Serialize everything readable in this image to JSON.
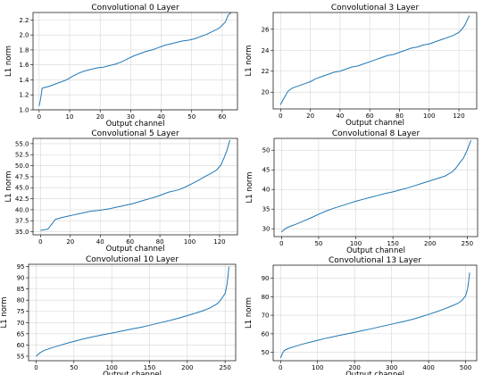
{
  "chart_data": [
    {
      "type": "line",
      "title": "Convolutional 0 Layer",
      "xlabel": "Output channel",
      "ylabel": "L1 norm",
      "xlim": [
        -2,
        65
      ],
      "ylim": [
        1.0,
        2.3
      ],
      "xticks": [
        0,
        10,
        20,
        30,
        40,
        50,
        60
      ],
      "yticks": [
        1.0,
        1.2,
        1.4,
        1.6,
        1.8,
        2.0,
        2.2
      ],
      "ytick_labels": [
        "1.0",
        "1.2",
        "1.4",
        "1.6",
        "1.8",
        "2.0",
        "2.2"
      ],
      "grid": true,
      "series": [
        {
          "x": [
            0,
            0.5,
            1,
            3,
            5,
            7,
            9,
            11,
            13,
            15,
            17,
            19,
            21,
            23,
            25,
            27,
            29,
            31,
            33,
            35,
            37,
            39,
            41,
            43,
            45,
            47,
            49,
            51,
            53,
            55,
            57,
            59,
            60,
            61,
            62,
            63
          ],
          "values": [
            1.05,
            1.15,
            1.29,
            1.31,
            1.34,
            1.37,
            1.4,
            1.45,
            1.49,
            1.52,
            1.54,
            1.56,
            1.57,
            1.59,
            1.61,
            1.64,
            1.68,
            1.72,
            1.75,
            1.78,
            1.8,
            1.83,
            1.86,
            1.88,
            1.9,
            1.92,
            1.93,
            1.95,
            1.98,
            2.01,
            2.05,
            2.09,
            2.13,
            2.17,
            2.27,
            2.3
          ]
        }
      ]
    },
    {
      "type": "line",
      "title": "Convolutional 3 Layer",
      "xlabel": "Output channel",
      "ylabel": "L1 norm",
      "xlim": [
        -5,
        132
      ],
      "ylim": [
        18.4,
        27.6
      ],
      "xticks": [
        0,
        20,
        40,
        60,
        80,
        100,
        120
      ],
      "yticks": [
        20,
        22,
        24,
        26
      ],
      "ytick_labels": [
        "20",
        "22",
        "24",
        "26"
      ],
      "grid": true,
      "series": [
        {
          "x": [
            0,
            1,
            3,
            5,
            8,
            12,
            16,
            20,
            24,
            28,
            32,
            36,
            40,
            44,
            48,
            52,
            56,
            60,
            64,
            68,
            72,
            76,
            80,
            84,
            88,
            92,
            96,
            100,
            104,
            108,
            112,
            116,
            120,
            122,
            124,
            126,
            127
          ],
          "values": [
            18.8,
            19.1,
            19.6,
            20.1,
            20.4,
            20.6,
            20.8,
            21.0,
            21.3,
            21.5,
            21.7,
            21.9,
            22.0,
            22.2,
            22.4,
            22.5,
            22.7,
            22.9,
            23.1,
            23.3,
            23.5,
            23.6,
            23.8,
            24.0,
            24.2,
            24.3,
            24.5,
            24.6,
            24.8,
            25.0,
            25.2,
            25.4,
            25.7,
            26.0,
            26.4,
            27.0,
            27.3
          ]
        }
      ]
    },
    {
      "type": "line",
      "title": "Convolutional 5 Layer",
      "xlabel": "Output channel",
      "ylabel": "L1 norm",
      "xlim": [
        -5,
        132
      ],
      "ylim": [
        34.3,
        56.2
      ],
      "xticks": [
        0,
        20,
        40,
        60,
        80,
        100,
        120
      ],
      "yticks": [
        35.0,
        37.5,
        40.0,
        42.5,
        45.0,
        47.5,
        50.0,
        52.5,
        55.0
      ],
      "ytick_labels": [
        "35.0",
        "37.5",
        "40.0",
        "42.5",
        "45.0",
        "47.5",
        "50.0",
        "52.5",
        "55.0"
      ],
      "grid": true,
      "series": [
        {
          "x": [
            0,
            3,
            5,
            7,
            10,
            14,
            18,
            22,
            26,
            30,
            34,
            38,
            42,
            46,
            50,
            54,
            58,
            62,
            66,
            70,
            74,
            78,
            82,
            86,
            90,
            94,
            98,
            102,
            106,
            110,
            114,
            118,
            121,
            123,
            125,
            126,
            127
          ],
          "values": [
            35.3,
            35.5,
            35.6,
            36.5,
            37.8,
            38.2,
            38.5,
            38.8,
            39.1,
            39.4,
            39.7,
            39.8,
            40.0,
            40.2,
            40.5,
            40.8,
            41.1,
            41.4,
            41.8,
            42.2,
            42.6,
            43.0,
            43.5,
            44.0,
            44.3,
            44.7,
            45.3,
            46.0,
            46.7,
            47.5,
            48.2,
            49.0,
            50.2,
            51.8,
            53.5,
            54.8,
            55.8
          ]
        }
      ]
    },
    {
      "type": "line",
      "title": "Convolutional 8 Layer",
      "xlabel": "Output channel",
      "ylabel": "L1 norm",
      "xlim": [
        -10,
        264
      ],
      "ylim": [
        28.0,
        53.0
      ],
      "xticks": [
        0,
        50,
        100,
        150,
        200,
        250
      ],
      "yticks": [
        30,
        35,
        40,
        45,
        50
      ],
      "ytick_labels": [
        "30",
        "35",
        "40",
        "45",
        "50"
      ],
      "grid": true,
      "series": [
        {
          "x": [
            0,
            5,
            10,
            20,
            30,
            40,
            50,
            60,
            70,
            80,
            90,
            100,
            110,
            120,
            130,
            140,
            150,
            160,
            170,
            180,
            190,
            200,
            210,
            220,
            230,
            235,
            240,
            245,
            250,
            253,
            255
          ],
          "values": [
            29.2,
            30.0,
            30.5,
            31.2,
            32.0,
            32.8,
            33.7,
            34.5,
            35.2,
            35.8,
            36.4,
            37.0,
            37.5,
            38.0,
            38.5,
            39.0,
            39.4,
            39.9,
            40.4,
            41.0,
            41.6,
            42.2,
            42.8,
            43.4,
            44.5,
            45.5,
            46.8,
            48.0,
            50.0,
            51.5,
            52.5
          ]
        }
      ]
    },
    {
      "type": "line",
      "title": "Convolutional 10 Layer",
      "xlabel": "Output channel",
      "ylabel": "L1 norm",
      "xlim": [
        -10,
        264
      ],
      "ylim": [
        53.0,
        96.0
      ],
      "xticks": [
        0,
        50,
        100,
        150,
        200,
        250
      ],
      "yticks": [
        55,
        60,
        65,
        70,
        75,
        80,
        85,
        90,
        95
      ],
      "ytick_labels": [
        "55",
        "60",
        "65",
        "70",
        "75",
        "80",
        "85",
        "90",
        "95"
      ],
      "grid": true,
      "series": [
        {
          "x": [
            0,
            5,
            10,
            20,
            30,
            40,
            50,
            60,
            70,
            80,
            90,
            100,
            110,
            120,
            130,
            140,
            150,
            160,
            170,
            180,
            190,
            200,
            210,
            220,
            230,
            240,
            245,
            250,
            252,
            254,
            255
          ],
          "values": [
            55.0,
            56.5,
            57.5,
            58.7,
            59.7,
            60.7,
            61.6,
            62.5,
            63.3,
            64.0,
            64.7,
            65.3,
            66.0,
            66.7,
            67.4,
            68.0,
            68.8,
            69.6,
            70.4,
            71.2,
            72.1,
            73.1,
            74.1,
            75.2,
            76.5,
            78.5,
            80.5,
            83.0,
            86.0,
            91.0,
            95.0
          ]
        }
      ]
    },
    {
      "type": "line",
      "title": "Convolutional 13 Layer",
      "xlabel": "Output channel",
      "ylabel": "L1 norm",
      "xlim": [
        -20,
        530
      ],
      "ylim": [
        45.5,
        97.0
      ],
      "xticks": [
        0,
        100,
        200,
        300,
        400,
        500
      ],
      "yticks": [
        50,
        60,
        70,
        80,
        90
      ],
      "ytick_labels": [
        "50",
        "60",
        "70",
        "80",
        "90"
      ],
      "grid": true,
      "series": [
        {
          "x": [
            0,
            5,
            10,
            20,
            40,
            60,
            80,
            100,
            120,
            140,
            160,
            180,
            200,
            220,
            240,
            260,
            280,
            300,
            320,
            340,
            360,
            380,
            400,
            420,
            440,
            460,
            480,
            490,
            500,
            505,
            508,
            511
          ],
          "values": [
            47.0,
            49.5,
            51.0,
            52.0,
            53.3,
            54.5,
            55.5,
            56.5,
            57.5,
            58.3,
            59.2,
            60.0,
            60.8,
            61.7,
            62.5,
            63.4,
            64.3,
            65.2,
            66.1,
            67.0,
            68.0,
            69.2,
            70.5,
            71.8,
            73.2,
            74.8,
            76.5,
            78.0,
            80.5,
            84.0,
            88.0,
            93.0
          ]
        }
      ]
    }
  ]
}
